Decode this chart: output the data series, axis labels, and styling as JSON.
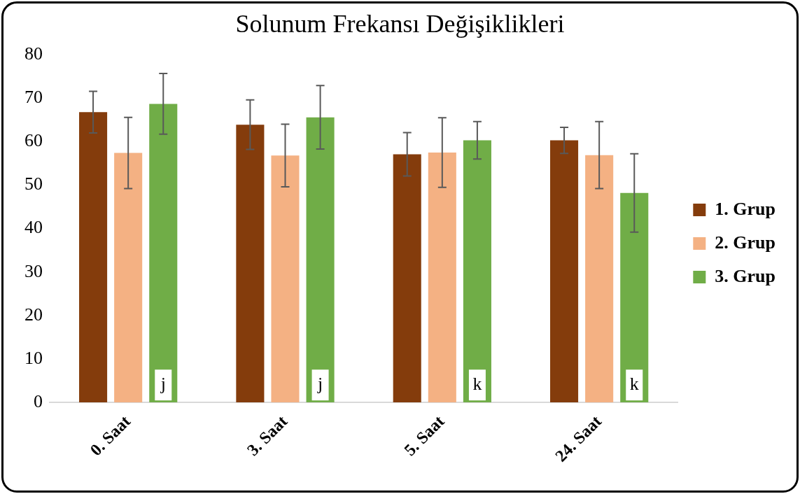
{
  "chart_data": {
    "type": "bar",
    "title": "Solunum Frekansı Değişiklikleri",
    "categories": [
      "0. Saat",
      "3. Saat",
      "5. Saat",
      "24. Saat"
    ],
    "series": [
      {
        "name": "1. Grup",
        "color": "#843c0c",
        "values": [
          66.8,
          63.9,
          57.1,
          60.3
        ],
        "errors": [
          4.8,
          5.7,
          5,
          3
        ]
      },
      {
        "name": "2. Grup",
        "color": "#f4b183",
        "values": [
          57.4,
          56.8,
          57.5,
          56.9
        ],
        "errors": [
          8.2,
          7.2,
          8,
          7.7
        ]
      },
      {
        "name": "3. Grup",
        "color": "#70ad47",
        "values": [
          68.7,
          65.6,
          60.3,
          48.2
        ],
        "errors": [
          7,
          7.3,
          4.3,
          9
        ]
      }
    ],
    "ylim": [
      0,
      80
    ],
    "yticks": [
      0,
      10,
      20,
      30,
      40,
      50,
      60,
      70,
      80
    ],
    "grid": false,
    "legend": "right",
    "annotations": [
      {
        "text": "j",
        "x": "0. Saat",
        "y": 4
      },
      {
        "text": "j",
        "x": "3. Saat",
        "y": 4
      },
      {
        "text": "k",
        "x": "5. Saat",
        "y": 4
      },
      {
        "text": "k",
        "x": "24. Saat",
        "y": 4
      }
    ]
  }
}
